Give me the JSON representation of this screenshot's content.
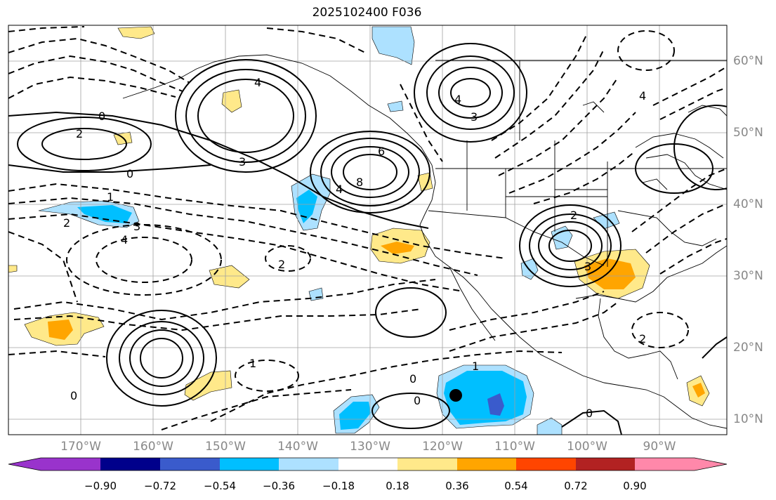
{
  "title": "2025102400 F036",
  "map": {
    "lon_labels": [
      "170°W",
      "160°W",
      "150°W",
      "140°W",
      "130°W",
      "120°W",
      "110°W",
      "100°W",
      "90°W"
    ],
    "lat_labels": [
      "60°N",
      "50°N",
      "40°N",
      "30°N",
      "20°N",
      "10°N"
    ],
    "contour_labels": [
      "4",
      "4",
      "3",
      "4",
      "6",
      "8",
      "4",
      "3",
      "2",
      "2",
      "3",
      "4",
      "3",
      "0",
      "2",
      "0",
      "1",
      "2",
      "2",
      "1",
      "1",
      "0",
      "0",
      "0",
      "0"
    ]
  },
  "colorbar": {
    "ticks": [
      "−0.90",
      "−0.72",
      "−0.54",
      "−0.36",
      "−0.18",
      "0.18",
      "0.36",
      "0.54",
      "0.72",
      "0.90"
    ],
    "colors": [
      "#9933cc",
      "#00008b",
      "#3a5bcc",
      "#00bfff",
      "#ade1ff",
      "#ffffff",
      "#ffe98a",
      "#ffa500",
      "#ff4500",
      "#b22222",
      "#ff88aa"
    ]
  },
  "marker": {
    "name": "black-dot",
    "color": "#000000"
  }
}
